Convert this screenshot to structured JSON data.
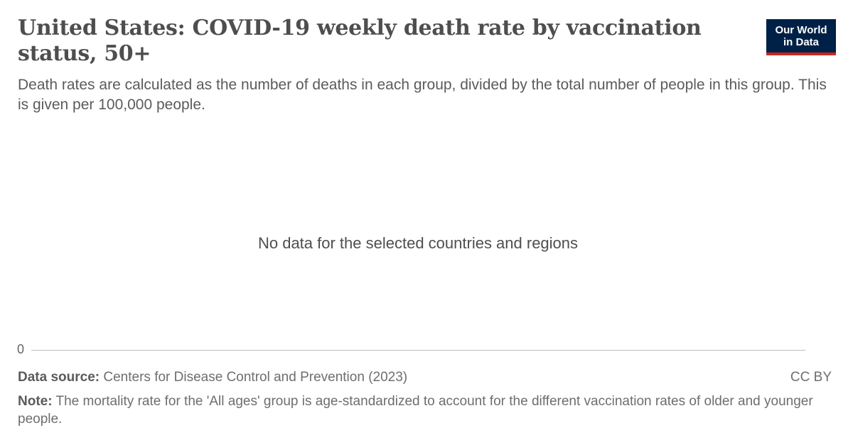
{
  "header": {
    "title": "United States: COVID-19 weekly death rate by vaccination status, 50+",
    "subtitle": "Death rates are calculated as the number of deaths in each group, divided by the total number of people in this group. This is given per 100,000 people.",
    "logo_line1": "Our World",
    "logo_line2": "in Data"
  },
  "chart_data": {
    "type": "line",
    "title": "United States: COVID-19 weekly death rate by vaccination status, 50+",
    "series": [],
    "y_ticks": [
      "0"
    ],
    "message": "No data for the selected countries and regions"
  },
  "footer": {
    "source_label": "Data source:",
    "source_text": "Centers for Disease Control and Prevention (2023)",
    "license": "CC BY",
    "note_label": "Note:",
    "note_text": "The mortality rate for the 'All ages' group is age-standardized to account for the different vaccination rates of older and younger people."
  }
}
